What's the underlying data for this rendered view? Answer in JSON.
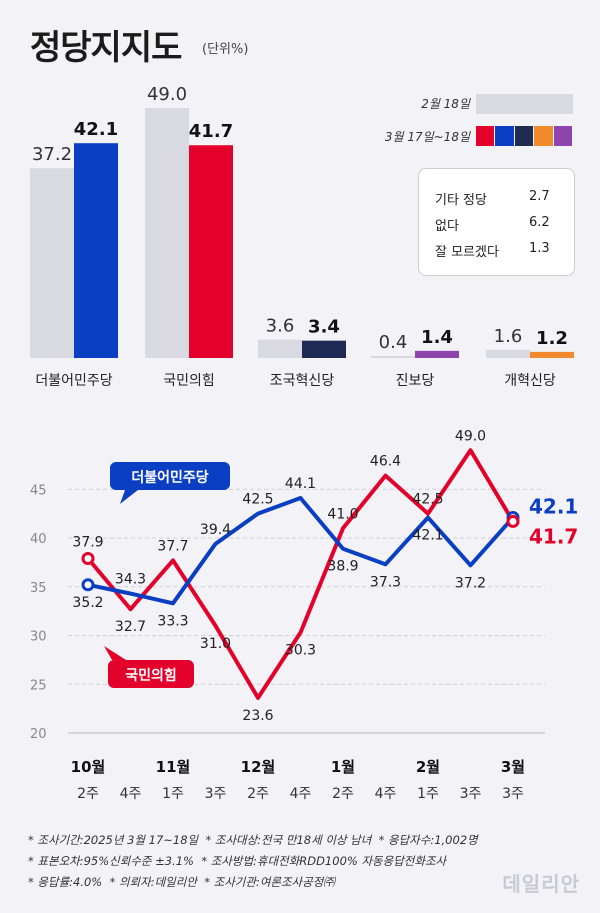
{
  "title": "정당지지도",
  "unit": "(단위%)",
  "legend": [
    {
      "label": "2월 18일",
      "colors": [
        "#d9d9e2"
      ]
    },
    {
      "label": "3월 17일~18일",
      "colors": [
        "#e3002a",
        "#0a3fc4",
        "#1f2a55",
        "#f08a2c",
        "#8e44ad"
      ]
    }
  ],
  "others": [
    {
      "label": "기타 정당",
      "value": "2.7"
    },
    {
      "label": "없다",
      "value": "6.2"
    },
    {
      "label": "잘 모르겠다",
      "value": "1.3"
    }
  ],
  "chart_data": [
    {
      "type": "bar",
      "categories": [
        "더불어민주당",
        "국민의힘",
        "조국혁신당",
        "진보당",
        "개혁신당"
      ],
      "series": [
        {
          "name": "2월 18일",
          "values": [
            37.2,
            49.0,
            3.6,
            0.4,
            1.6
          ],
          "labels": [
            "37.2",
            "49.0",
            "3.6",
            "0.4",
            "1.6"
          ],
          "color": "#d9d9e2"
        },
        {
          "name": "3월 17일~18일",
          "values": [
            42.1,
            41.7,
            3.4,
            1.4,
            1.2
          ],
          "labels": [
            "42.1",
            "41.7",
            "3.4",
            "1.4",
            "1.2"
          ],
          "colors": [
            "#0a3fc4",
            "#e3002a",
            "#1f2a55",
            "#8e44ad",
            "#f08a2c"
          ]
        }
      ],
      "ylim": [
        0,
        49.0
      ]
    },
    {
      "type": "line",
      "x": [
        "10월 2주",
        "4주",
        "11월 1주",
        "3주",
        "12월 2주",
        "4주",
        "1월 2주",
        "4주",
        "2월 1주",
        "3주",
        "3월 3주"
      ],
      "month_labels": [
        "10월",
        "",
        "11월",
        "",
        "12월",
        "",
        "1월",
        "",
        "2월",
        "",
        "3월"
      ],
      "week_labels": [
        "2주",
        "4주",
        "1주",
        "3주",
        "2주",
        "4주",
        "2주",
        "4주",
        "1주",
        "3주",
        "3주"
      ],
      "series": [
        {
          "name": "더불어민주당",
          "values": [
            35.2,
            34.3,
            33.3,
            39.4,
            42.5,
            44.1,
            38.9,
            37.3,
            42.1,
            37.2,
            42.1
          ],
          "labels": [
            "35.2",
            "34.3",
            "33.3",
            "39.4",
            "42.5",
            "44.1",
            "38.9",
            "37.3",
            "42.1",
            "37.2",
            "42.1"
          ],
          "color": "#0a3fc4"
        },
        {
          "name": "국민의힘",
          "values": [
            37.9,
            32.7,
            37.7,
            31.0,
            23.6,
            30.3,
            41.0,
            46.4,
            42.5,
            49.0,
            41.7
          ],
          "labels": [
            "37.9",
            "32.7",
            "37.7",
            "31.0",
            "23.6",
            "30.3",
            "41.0",
            "46.4",
            "42.5",
            "49.0",
            "41.7"
          ],
          "color": "#e3002a"
        }
      ],
      "yticks": [
        "20",
        "25",
        "30",
        "35",
        "40",
        "45"
      ],
      "ylim": [
        20,
        48
      ],
      "grid": true
    }
  ],
  "footer": [
    [
      "* 조사기간:2025년 3월 17~18일",
      "* 조사대상:전국 만18세 이상 남녀",
      "* 응답자수:1,002명"
    ],
    [
      "* 표본오차:95%신뢰수준 ±3.1%",
      "* 조사방법:휴대전화RDD100% 자동응답전화조사"
    ],
    [
      "* 응답률:4.0%",
      "* 의뢰자:데일리안",
      "* 조사기관:여론조사공정㈜"
    ]
  ],
  "logo": "데일리안"
}
